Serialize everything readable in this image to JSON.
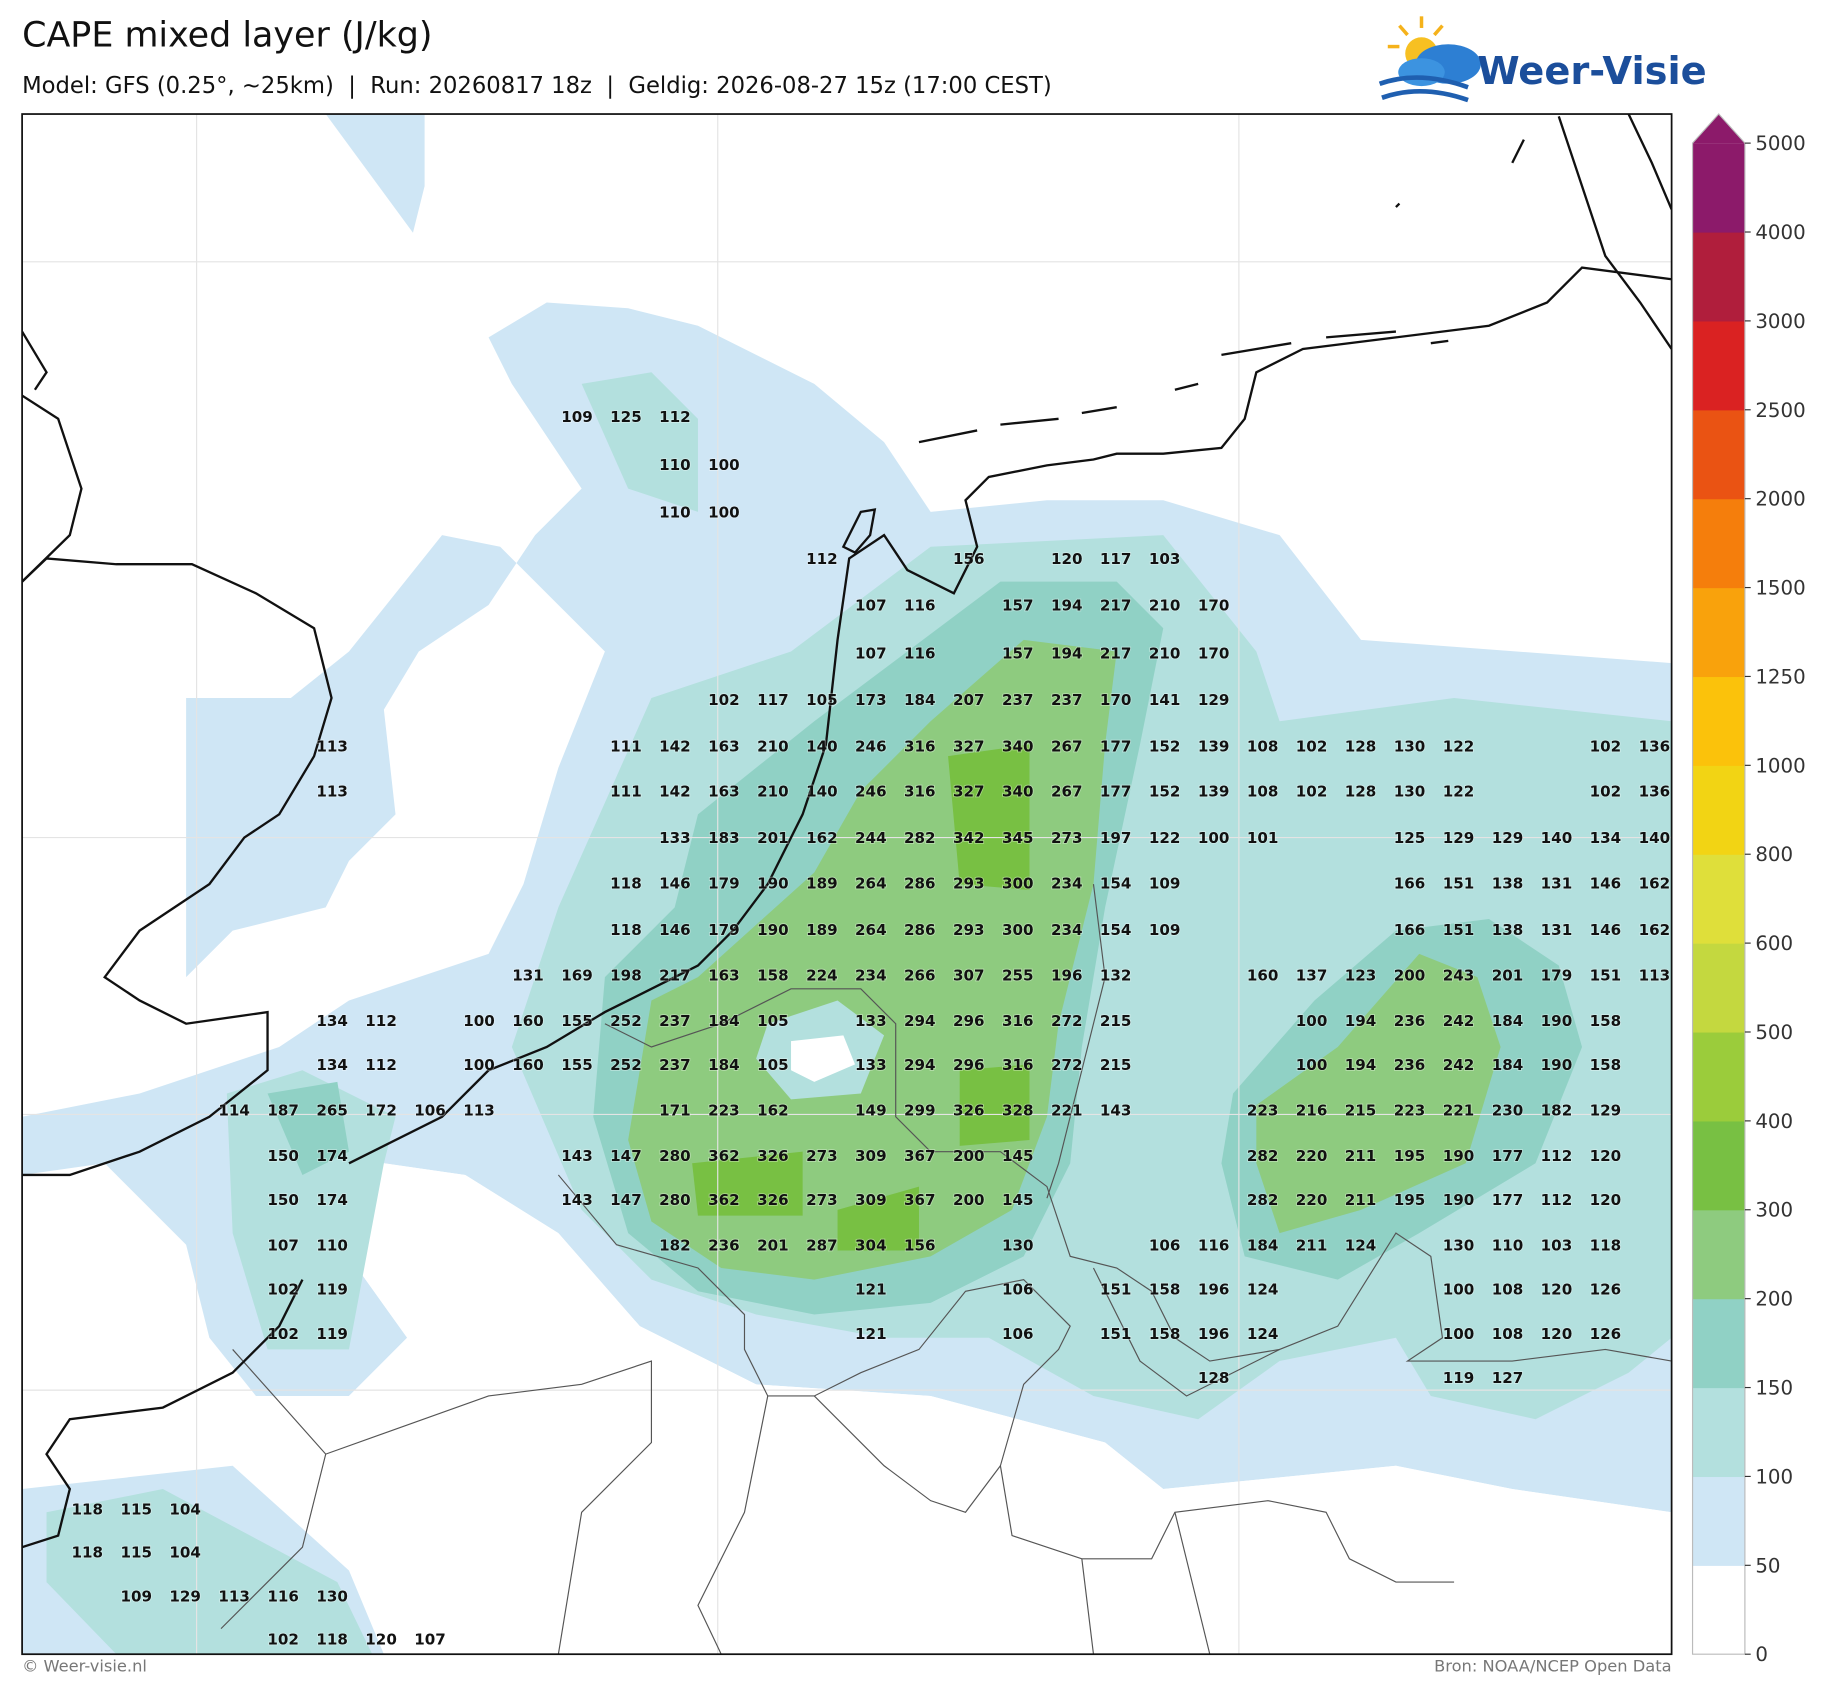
{
  "header": {
    "title": "CAPE mixed layer (J/kg)",
    "subtitle": "Model: GFS (0.25°, ~25km)  |  Run: 20260817 18z  |  Geldig: 2026-08-27 15z (17:00 CEST)",
    "logo": "Weer-Visie"
  },
  "footer": {
    "left": "© Weer-visie.nl",
    "right": "Bron: NOAA/NCEP Open Data"
  },
  "colorbar": {
    "ticks": [
      0,
      50,
      100,
      150,
      200,
      300,
      400,
      500,
      600,
      800,
      1000,
      1250,
      1500,
      2000,
      2500,
      3000,
      4000,
      5000
    ],
    "colors": [
      "#ffffff",
      "#cfe6f5",
      "#b3e0de",
      "#90d1c5",
      "#8ecb7f",
      "#78c043",
      "#9bcc3b",
      "#c4d83f",
      "#dfdf3a",
      "#f2d414",
      "#fbc20b",
      "#f9a20c",
      "#f57e0c",
      "#ea5313",
      "#da2222",
      "#b01e3c",
      "#8c1a6a"
    ]
  },
  "map_labels": {
    "rows": [
      [
        null,
        null,
        null,
        null,
        null,
        null,
        null,
        null,
        null,
        null,
        109,
        125,
        112
      ],
      [
        null,
        null,
        null,
        null,
        null,
        null,
        null,
        null,
        null,
        null,
        null,
        null,
        110,
        100
      ],
      [
        null,
        null,
        null,
        null,
        null,
        null,
        null,
        null,
        null,
        null,
        null,
        null,
        110,
        100
      ],
      [
        null,
        null,
        null,
        null,
        null,
        null,
        null,
        null,
        null,
        null,
        null,
        null,
        null,
        null,
        null,
        112,
        null,
        null,
        156,
        null,
        120,
        117,
        103
      ],
      [
        null,
        null,
        null,
        null,
        null,
        null,
        null,
        null,
        null,
        null,
        null,
        null,
        null,
        null,
        null,
        null,
        107,
        116,
        null,
        157,
        194,
        217,
        210,
        170
      ],
      [
        null,
        null,
        null,
        null,
        null,
        null,
        null,
        null,
        null,
        null,
        null,
        null,
        null,
        null,
        null,
        null,
        107,
        116,
        null,
        157,
        194,
        217,
        210,
        170
      ],
      [
        null,
        null,
        null,
        null,
        null,
        null,
        null,
        null,
        null,
        null,
        null,
        null,
        null,
        102,
        117,
        105,
        173,
        184,
        207,
        237,
        237,
        170,
        141,
        129
      ],
      [
        null,
        null,
        null,
        null,
        null,
        113,
        null,
        null,
        null,
        null,
        null,
        111,
        142,
        163,
        210,
        140,
        246,
        316,
        327,
        340,
        267,
        177,
        152,
        139,
        108,
        102,
        128,
        130,
        122,
        null,
        null,
        102,
        136
      ],
      [
        null,
        null,
        null,
        null,
        null,
        113,
        null,
        null,
        null,
        null,
        null,
        111,
        142,
        163,
        210,
        140,
        246,
        316,
        327,
        340,
        267,
        177,
        152,
        139,
        108,
        102,
        128,
        130,
        122,
        null,
        null,
        102,
        136
      ],
      [
        null,
        null,
        null,
        null,
        null,
        null,
        null,
        null,
        null,
        null,
        null,
        null,
        133,
        183,
        201,
        162,
        244,
        282,
        342,
        345,
        273,
        197,
        122,
        100,
        101,
        null,
        null,
        125,
        129,
        129,
        140,
        134,
        140
      ],
      [
        null,
        null,
        null,
        null,
        null,
        null,
        null,
        null,
        null,
        null,
        null,
        118,
        146,
        179,
        190,
        189,
        264,
        286,
        293,
        300,
        234,
        154,
        109,
        null,
        null,
        null,
        null,
        166,
        151,
        138,
        131,
        146,
        162
      ],
      [
        null,
        null,
        null,
        null,
        null,
        null,
        null,
        null,
        null,
        null,
        null,
        118,
        146,
        179,
        190,
        189,
        264,
        286,
        293,
        300,
        234,
        154,
        109,
        null,
        null,
        null,
        null,
        166,
        151,
        138,
        131,
        146,
        162
      ],
      [
        null,
        null,
        null,
        null,
        null,
        null,
        null,
        null,
        null,
        131,
        169,
        198,
        217,
        163,
        158,
        224,
        234,
        266,
        307,
        255,
        196,
        132,
        null,
        null,
        160,
        137,
        123,
        200,
        243,
        201,
        179,
        151,
        113
      ],
      [
        null,
        null,
        null,
        null,
        null,
        134,
        112,
        null,
        100,
        160,
        155,
        252,
        237,
        184,
        105,
        null,
        133,
        294,
        296,
        316,
        272,
        215,
        null,
        null,
        null,
        100,
        194,
        236,
        242,
        184,
        190,
        158
      ],
      [
        null,
        null,
        null,
        null,
        null,
        134,
        112,
        null,
        100,
        160,
        155,
        252,
        237,
        184,
        105,
        null,
        133,
        294,
        296,
        316,
        272,
        215,
        null,
        null,
        null,
        100,
        194,
        236,
        242,
        184,
        190,
        158
      ],
      [
        null,
        null,
        null,
        114,
        187,
        265,
        172,
        106,
        113,
        null,
        null,
        null,
        171,
        223,
        162,
        null,
        149,
        299,
        326,
        328,
        221,
        143,
        null,
        null,
        223,
        216,
        215,
        223,
        221,
        230,
        182,
        129
      ],
      [
        null,
        null,
        null,
        null,
        150,
        174,
        null,
        null,
        null,
        null,
        143,
        147,
        280,
        362,
        326,
        273,
        309,
        367,
        200,
        145,
        null,
        null,
        null,
        null,
        282,
        220,
        211,
        195,
        190,
        177,
        112,
        120
      ],
      [
        null,
        null,
        null,
        null,
        150,
        174,
        null,
        null,
        null,
        null,
        143,
        147,
        280,
        362,
        326,
        273,
        309,
        367,
        200,
        145,
        null,
        null,
        null,
        null,
        282,
        220,
        211,
        195,
        190,
        177,
        112,
        120
      ],
      [
        null,
        null,
        null,
        null,
        107,
        110,
        null,
        null,
        null,
        null,
        null,
        null,
        182,
        236,
        201,
        287,
        304,
        156,
        null,
        130,
        null,
        null,
        106,
        116,
        184,
        211,
        124,
        null,
        130,
        110,
        103,
        118
      ],
      [
        null,
        null,
        null,
        null,
        102,
        119,
        null,
        null,
        null,
        null,
        null,
        null,
        null,
        null,
        null,
        null,
        121,
        null,
        null,
        106,
        null,
        151,
        158,
        196,
        124,
        null,
        null,
        null,
        100,
        108,
        120,
        126
      ],
      [
        null,
        null,
        null,
        null,
        102,
        119,
        null,
        null,
        null,
        null,
        null,
        null,
        null,
        null,
        null,
        null,
        121,
        null,
        null,
        106,
        null,
        151,
        158,
        196,
        124,
        null,
        null,
        null,
        100,
        108,
        120,
        126
      ],
      [
        null,
        null,
        null,
        null,
        null,
        null,
        null,
        null,
        null,
        null,
        null,
        null,
        null,
        null,
        null,
        null,
        null,
        null,
        null,
        null,
        null,
        null,
        null,
        128,
        null,
        null,
        null,
        null,
        119,
        127
      ],
      [
        118,
        115,
        104
      ],
      [
        118,
        115,
        104
      ],
      [
        null,
        109,
        129,
        113,
        116,
        130
      ],
      [
        null,
        null,
        null,
        null,
        102,
        118,
        120,
        107
      ]
    ]
  }
}
